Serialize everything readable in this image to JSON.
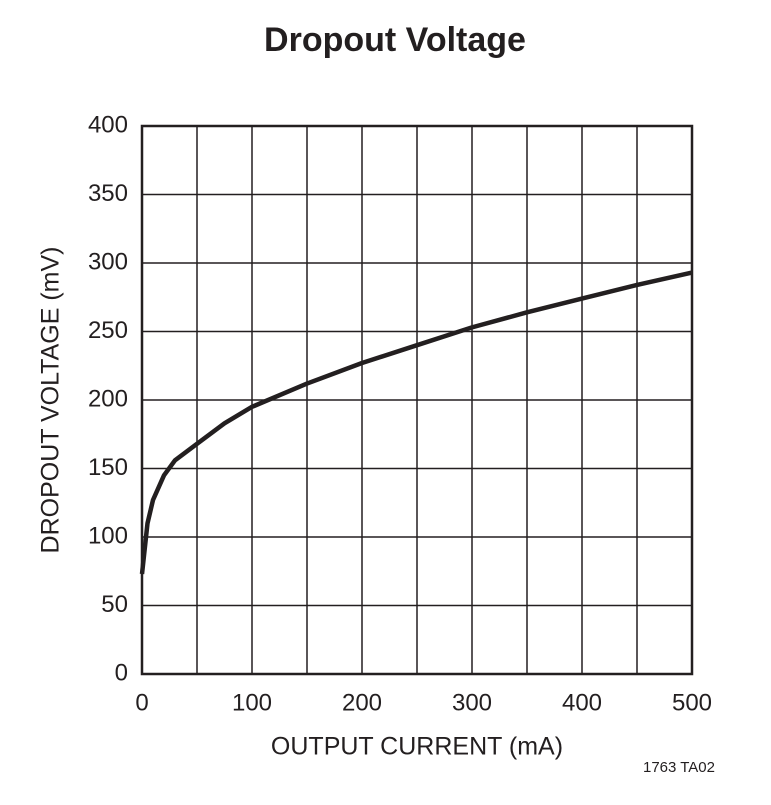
{
  "chart_data": {
    "type": "line",
    "title": "Dropout Voltage",
    "x_label": "OUTPUT CURRENT (mA)",
    "y_label": "DROPOUT VOLTAGE (mV)",
    "footnote": "1763 TA02",
    "x": [
      0,
      5,
      10,
      20,
      30,
      50,
      75,
      100,
      150,
      200,
      250,
      300,
      350,
      400,
      450,
      500
    ],
    "series": [
      {
        "name": "Dropout Voltage",
        "color": "#231f20",
        "values": [
          73,
          110,
          127,
          145,
          156,
          168,
          183,
          195,
          212,
          227,
          240,
          253,
          264,
          274,
          284,
          293
        ]
      }
    ],
    "xlim": [
      0,
      500
    ],
    "xticks": [
      0,
      100,
      200,
      300,
      400,
      500
    ],
    "x_minor_grid": [
      50,
      150,
      250,
      350,
      450
    ],
    "ylim": [
      0,
      400
    ],
    "yticks": [
      0,
      50,
      100,
      150,
      200,
      250,
      300,
      350,
      400
    ],
    "grid": true
  }
}
